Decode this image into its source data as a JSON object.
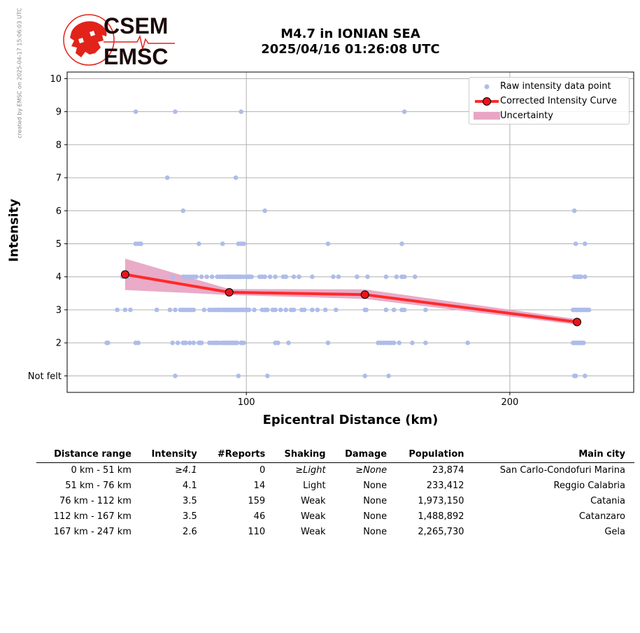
{
  "watermark": "created by EMSC on 2025-04-17 15:06:03 UTC",
  "logo": {
    "line1": "CSEM",
    "line2": "EMSC",
    "red": "#e2231a"
  },
  "title": {
    "line1": "M4.7 in IONIAN SEA",
    "line2": "2025/04/16 01:26:08 UTC"
  },
  "chart_data": {
    "type": "scatter",
    "xlabel": "Epicentral Distance (km)",
    "ylabel": "Intensity",
    "xlim": [
      32,
      247
    ],
    "ylim": [
      0.5,
      10.2
    ],
    "xticks": [
      100,
      200
    ],
    "yticks": [
      1,
      2,
      3,
      4,
      5,
      6,
      7,
      8,
      9,
      10
    ],
    "ytick_labels": [
      "Not felt",
      "2",
      "3",
      "4",
      "5",
      "6",
      "7",
      "8",
      "9",
      "10"
    ],
    "grid": true,
    "legend_position": "top-right",
    "colors": {
      "points": "#aebcea",
      "curve": "#ff2a2a",
      "band": "#e8a6c4",
      "marker": "#e8151b"
    },
    "legend": [
      "Raw intensity data point",
      "Corrected Intensity Curve",
      "Uncertainty"
    ],
    "curve": {
      "x": [
        54,
        93.5,
        145,
        225.5
      ],
      "y": [
        4.07,
        3.53,
        3.46,
        2.63
      ]
    },
    "uncertainty": {
      "x": [
        54,
        93.5,
        145,
        225.5
      ],
      "lower": [
        3.6,
        3.45,
        3.33,
        2.55
      ],
      "upper": [
        4.55,
        3.63,
        3.62,
        2.72
      ]
    },
    "raw_points": [
      {
        "y": 1,
        "x": [
          73,
          97,
          108,
          145,
          154,
          224.5,
          225,
          228.5
        ]
      },
      {
        "y": 2,
        "x": [
          47,
          47.5,
          58,
          59,
          72,
          74,
          76,
          76.5,
          77,
          78.5,
          80,
          82,
          82.5,
          83,
          86,
          87,
          88,
          88.5,
          89,
          90,
          91,
          91.5,
          92,
          92.5,
          93,
          93.5,
          94,
          94.5,
          95,
          95.5,
          96,
          96.5,
          98,
          98.5,
          99,
          111,
          112,
          116,
          131,
          150,
          151,
          152,
          153,
          154,
          155,
          156,
          158,
          163,
          168,
          184,
          224,
          224.5,
          225,
          225.5,
          226,
          226.5,
          227,
          227.5,
          228
        ]
      },
      {
        "y": 3,
        "x": [
          51,
          54,
          56,
          66,
          71,
          73,
          75,
          76,
          77,
          78,
          79,
          80,
          84,
          86,
          87,
          88,
          88.5,
          89.5,
          90,
          91,
          91.5,
          92,
          92.5,
          93,
          93.5,
          94,
          94.5,
          95,
          95.5,
          96,
          96.5,
          97,
          97.5,
          98,
          98.5,
          99,
          99.5,
          100,
          100.5,
          101,
          103,
          106,
          107,
          107.5,
          108,
          110,
          111,
          113,
          115,
          117,
          118,
          121,
          122,
          125,
          127,
          130,
          134,
          145,
          145.5,
          153,
          156,
          159,
          160,
          168,
          224,
          224.5,
          225,
          225.5,
          226,
          226.5,
          227,
          227.5,
          228,
          228.5,
          229,
          229.5,
          230
        ]
      },
      {
        "y": 4,
        "x": [
          53,
          55,
          72,
          76,
          77,
          78,
          79,
          80,
          81,
          83,
          85,
          87,
          89,
          90,
          91,
          92,
          92.5,
          93,
          93.5,
          94,
          94.5,
          95,
          95.5,
          96,
          96.5,
          97,
          97.5,
          98,
          99,
          100,
          100.5,
          101,
          101.5,
          102,
          105,
          106,
          107,
          109,
          111,
          114,
          115,
          118,
          120,
          125,
          133,
          135,
          142,
          146,
          153,
          157,
          159,
          160,
          164,
          224.5,
          225.5,
          226,
          226.5,
          227,
          228.5
        ]
      },
      {
        "y": 5,
        "x": [
          58,
          59,
          60,
          82,
          91,
          97,
          98,
          99,
          131,
          159,
          225,
          228.5
        ]
      },
      {
        "y": 6,
        "x": [
          76,
          107,
          224.5
        ]
      },
      {
        "y": 7,
        "x": [
          70,
          96
        ]
      },
      {
        "y": 9,
        "x": [
          58,
          73,
          98,
          160
        ]
      }
    ]
  },
  "table": {
    "headers": [
      "Distance range",
      "Intensity",
      "#Reports",
      "Shaking",
      "Damage",
      "Population",
      "Main city"
    ],
    "rows": [
      {
        "range": "0 km -   51 km",
        "intensity": "≥4.1",
        "reports": "0",
        "shaking": "≥Light",
        "damage": "≥None",
        "population": "23,874",
        "city": "San Carlo-Condofuri Marina"
      },
      {
        "range": "51 km -   76 km",
        "intensity": "4.1",
        "reports": "14",
        "shaking": "Light",
        "damage": "None",
        "population": "233,412",
        "city": "Reggio Calabria"
      },
      {
        "range": "76 km -  112 km",
        "intensity": "3.5",
        "reports": "159",
        "shaking": "Weak",
        "damage": "None",
        "population": "1,973,150",
        "city": "Catania"
      },
      {
        "range": "112 km -  167 km",
        "intensity": "3.5",
        "reports": "46",
        "shaking": "Weak",
        "damage": "None",
        "population": "1,488,892",
        "city": "Catanzaro"
      },
      {
        "range": "167 km -  247 km",
        "intensity": "2.6",
        "reports": "110",
        "shaking": "Weak",
        "damage": "None",
        "population": "2,265,730",
        "city": "Gela"
      }
    ]
  }
}
